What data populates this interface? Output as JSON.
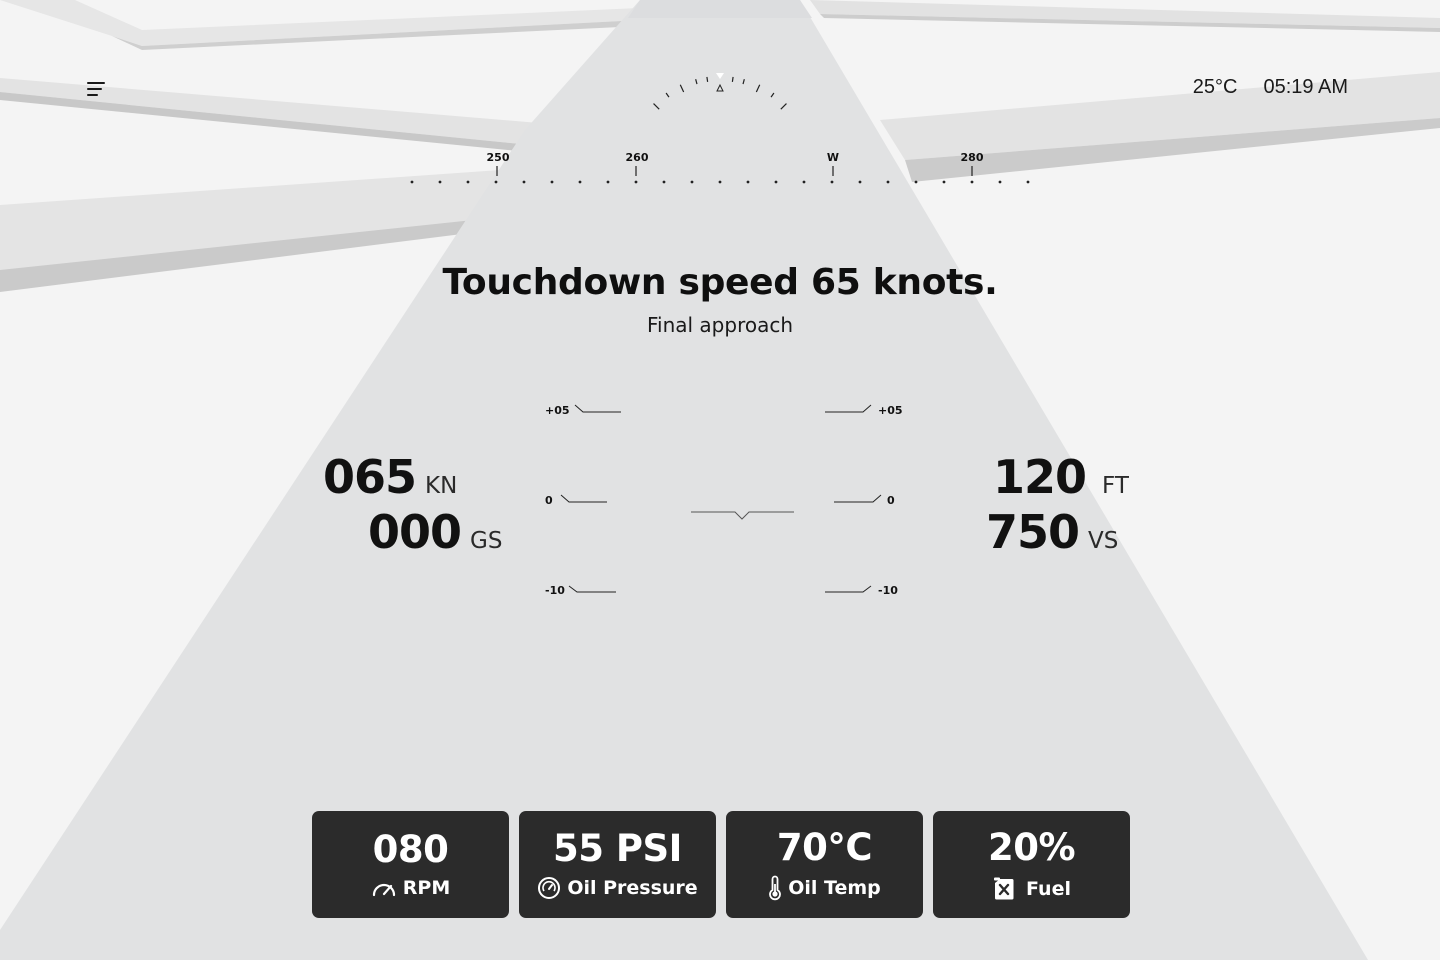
{
  "status": {
    "temperature": "25°C",
    "time": "05:19 AM"
  },
  "heading_tape": {
    "labels": [
      "250",
      "260",
      "W",
      "280"
    ]
  },
  "message": {
    "title": "Touchdown speed 65 knots.",
    "subtitle": "Final approach"
  },
  "left_readouts": {
    "airspeed": {
      "value": "065",
      "unit": "KN"
    },
    "groundspeed": {
      "value": "000",
      "unit": "GS"
    }
  },
  "right_readouts": {
    "altitude": {
      "value": "120",
      "unit": "FT"
    },
    "vertical_speed": {
      "value": "750",
      "unit": "VS"
    }
  },
  "pitch_ladder": {
    "labels": [
      "+05",
      "0",
      "-10"
    ]
  },
  "gauges": [
    {
      "value": "080",
      "label": "RPM",
      "icon": "speedometer-icon"
    },
    {
      "value": "55 PSI",
      "label": "Oil Pressure",
      "icon": "pressure-gauge-icon"
    },
    {
      "value": "70°C",
      "label": "Oil Temp",
      "icon": "thermometer-icon"
    },
    {
      "value": "20%",
      "label": "Fuel",
      "icon": "fuel-can-icon"
    }
  ],
  "colors": {
    "card_bg": "#2b2b2b",
    "runway": "#e1e2e3",
    "background": "#f4f4f4"
  }
}
